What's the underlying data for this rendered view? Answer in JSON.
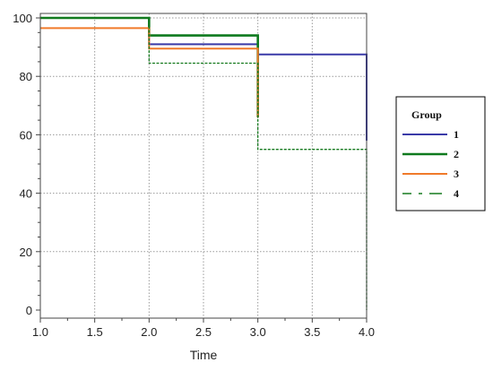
{
  "chart_data": {
    "type": "line",
    "step": "post",
    "title": "",
    "xlabel": "Time",
    "ylabel": "",
    "xlim": [
      1.0,
      4.0
    ],
    "ylim": [
      0,
      100
    ],
    "x_ticks": [
      "1.0",
      "1.5",
      "2.0",
      "2.5",
      "3.0",
      "3.5",
      "4.0"
    ],
    "y_ticks": [
      "0",
      "20",
      "40",
      "60",
      "80",
      "100"
    ],
    "grid": true,
    "legend": {
      "title": "Group",
      "position": "right"
    },
    "series": [
      {
        "name": "1",
        "color": "#3a3aa8",
        "dash": "solid",
        "x": [
          1.0,
          2.0,
          3.0,
          4.0,
          4.0
        ],
        "y": [
          100,
          91,
          87.5,
          87.5,
          58
        ]
      },
      {
        "name": "2",
        "color": "#0f7a1e",
        "dash": "solid",
        "x": [
          1.0,
          2.0,
          3.0
        ],
        "y": [
          100,
          94,
          66
        ]
      },
      {
        "name": "3",
        "color": "#f07a2a",
        "dash": "solid",
        "x": [
          1.0,
          2.0,
          3.0
        ],
        "y": [
          96.5,
          89.5,
          66
        ]
      },
      {
        "name": "4",
        "color": "#157a1e",
        "dash": "dashed",
        "x": [
          1.0,
          2.0,
          3.0,
          4.0,
          4.0
        ],
        "y": [
          100,
          84.5,
          55,
          55,
          0
        ]
      }
    ]
  }
}
